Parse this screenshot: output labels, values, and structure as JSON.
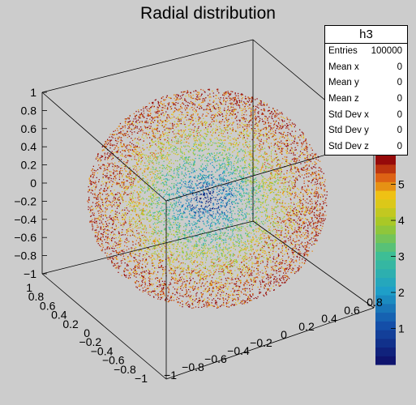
{
  "chart_data": {
    "type": "scatter3d",
    "title": "Radial distribution",
    "xlim": [
      -1,
      1
    ],
    "ylim": [
      -1,
      1
    ],
    "zlim": [
      -1,
      1
    ],
    "x_ticks": [
      "−1",
      "−0.8",
      "−0.6",
      "−0.4",
      "−0.2",
      "0",
      "0.2",
      "0.4",
      "0.6",
      "0.8"
    ],
    "y_ticks": [
      "−1",
      "−0.8",
      "−0.6",
      "−0.4",
      "−0.2",
      "0",
      "0.2",
      "0.4",
      "0.6",
      "0.8",
      "1"
    ],
    "z_ticks": [
      "−1",
      "−0.8",
      "−0.6",
      "−0.4",
      "−0.2",
      "0",
      "0.2",
      "0.4",
      "0.6",
      "0.8",
      "1"
    ],
    "colorbar": {
      "ticks": [
        "1",
        "2",
        "3",
        "4",
        "5"
      ],
      "range": [
        0,
        5.8
      ]
    },
    "points": {
      "entries": 100000,
      "shape": "uniform ball of radius 1",
      "density_peak": "center"
    }
  },
  "stats": {
    "name": "h3",
    "rows": [
      {
        "key": "Entries",
        "value": "100000"
      },
      {
        "key": "Mean x",
        "value": "0"
      },
      {
        "key": "Mean y",
        "value": "0"
      },
      {
        "key": "Mean z",
        "value": "0"
      },
      {
        "key": "Std Dev x",
        "value": "0"
      },
      {
        "key": "Std Dev y",
        "value": "0"
      },
      {
        "key": "Std Dev z",
        "value": "0"
      }
    ]
  }
}
